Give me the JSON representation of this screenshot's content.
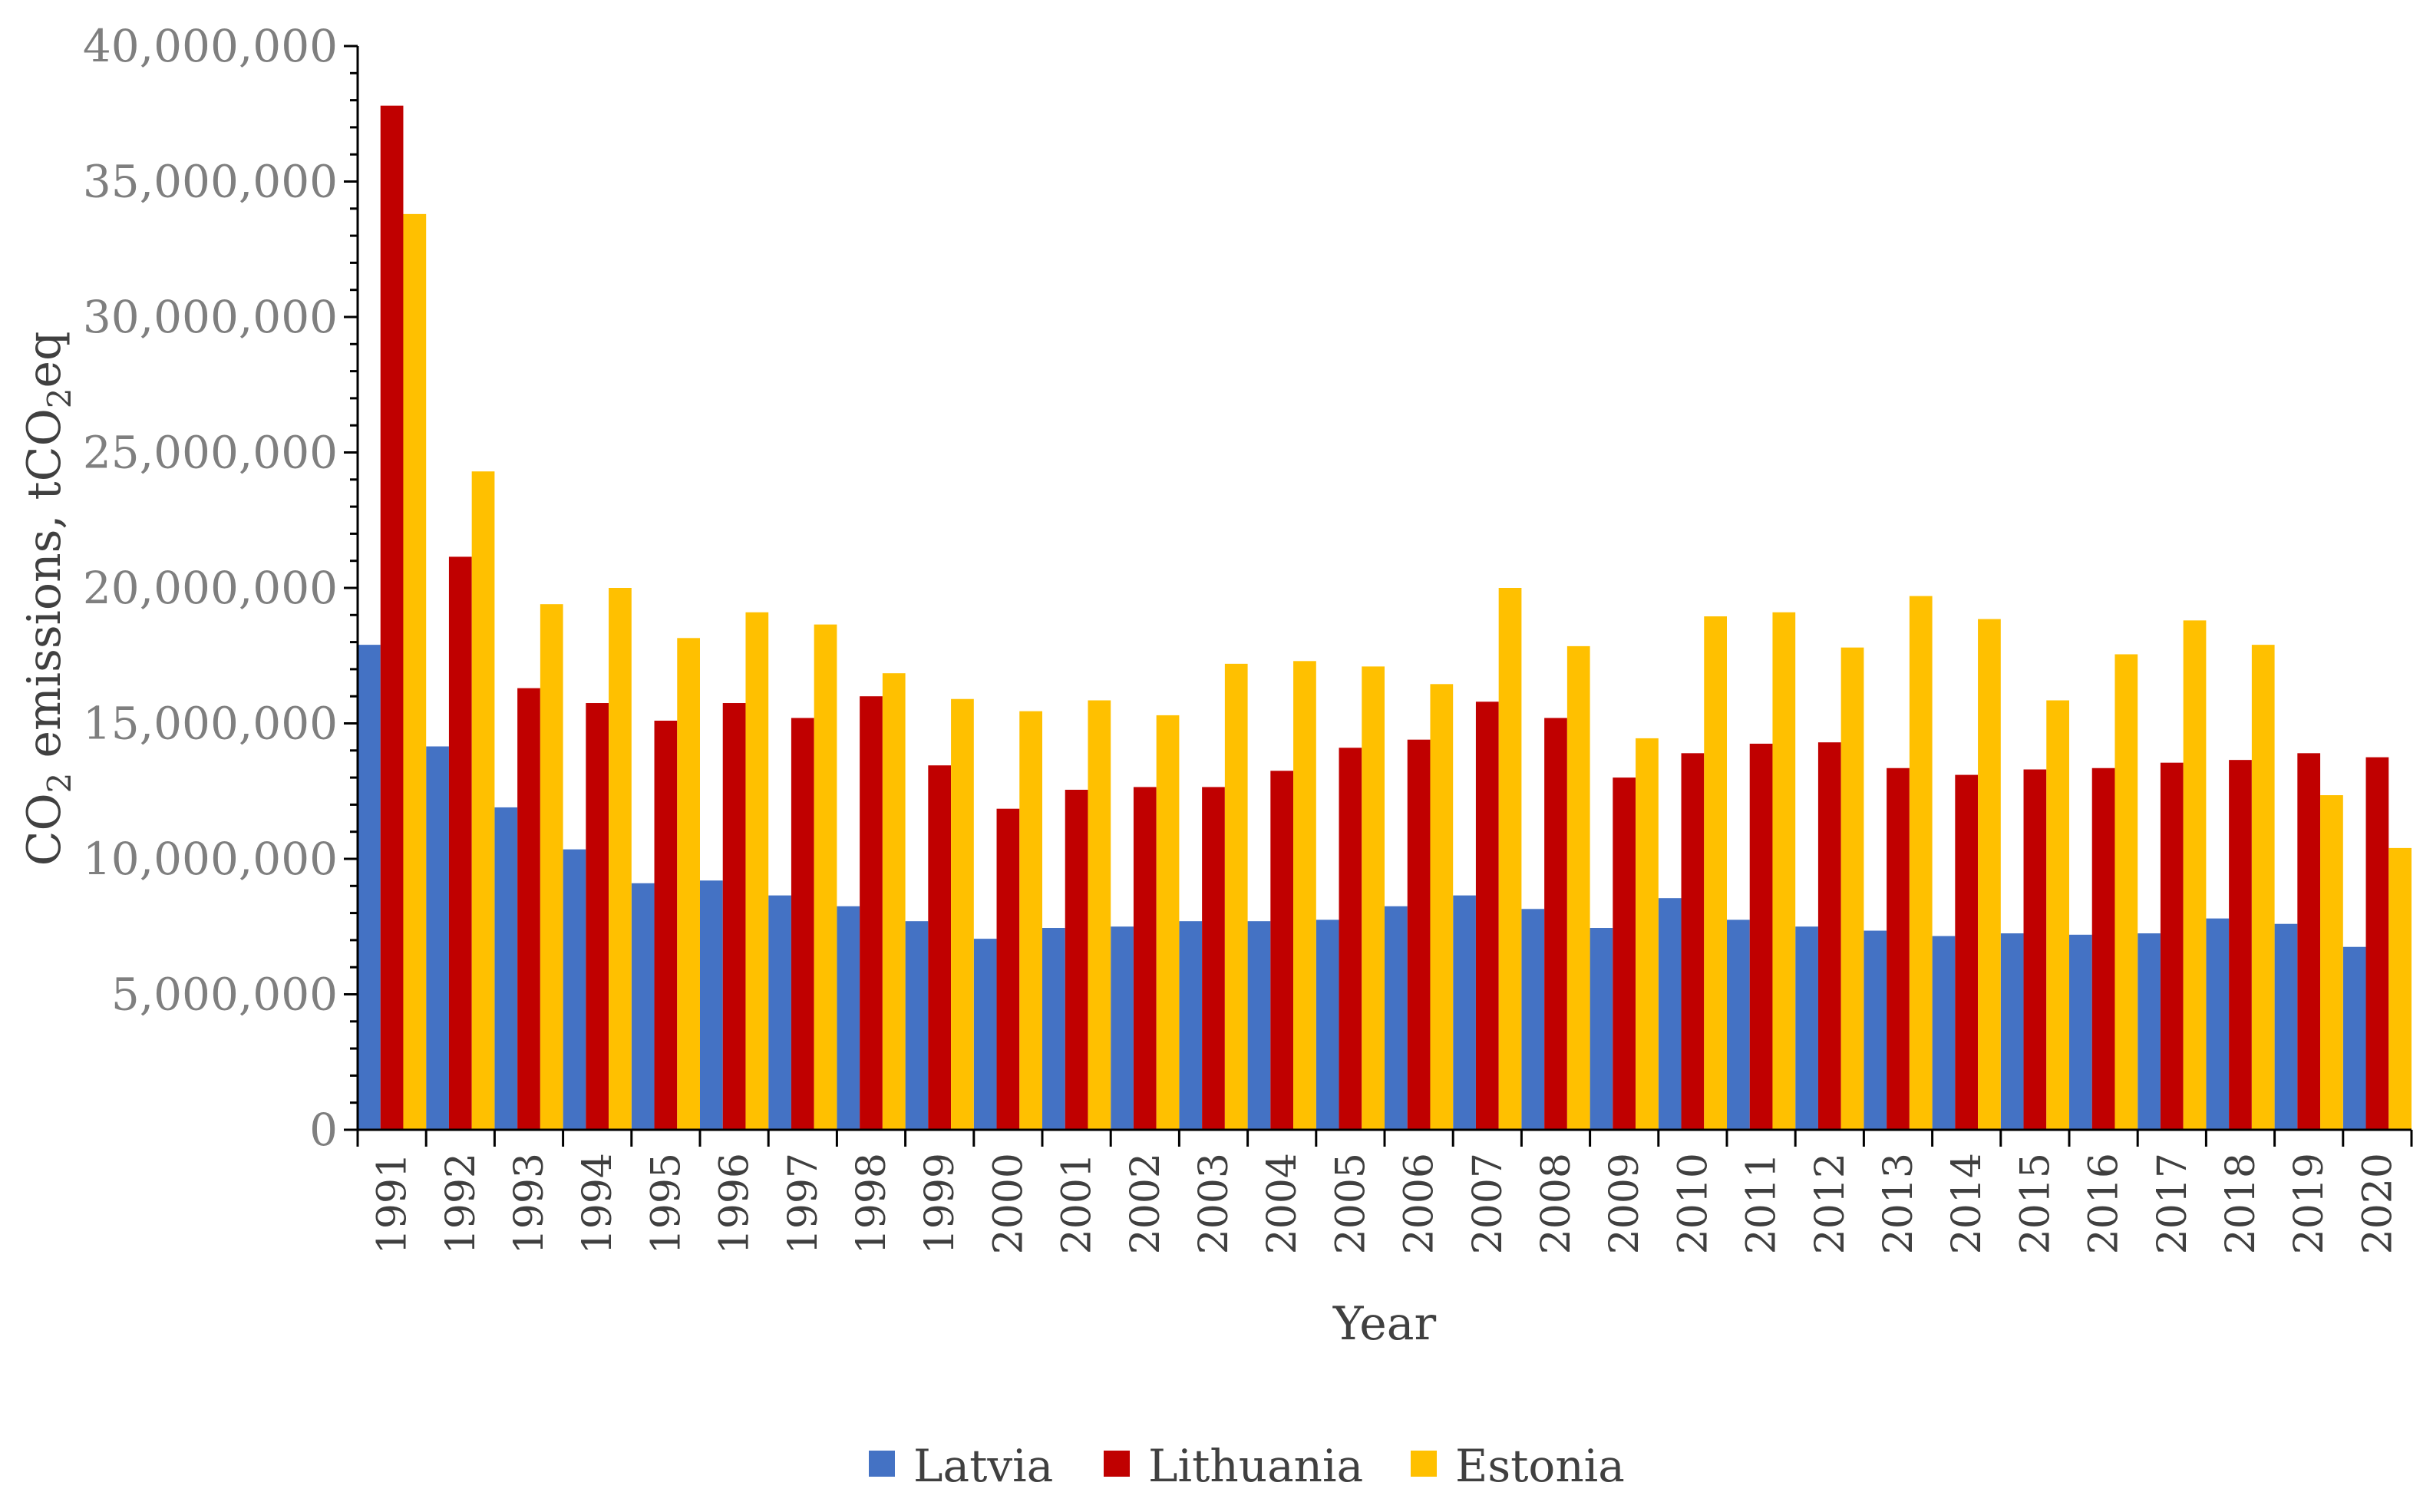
{
  "chart_data": {
    "type": "bar",
    "title": "",
    "xlabel": "Year",
    "ylabel": "CO2 emissions, tCO2eq",
    "ylabel_parts": {
      "a": "CO",
      "sub1": "2",
      "b": " emissions, tCO",
      "sub2": "2",
      "c": "eq"
    },
    "ylim": [
      0,
      40000000
    ],
    "y_ticks": [
      0,
      5000000,
      10000000,
      15000000,
      20000000,
      25000000,
      30000000,
      35000000,
      40000000
    ],
    "y_tick_labels": [
      "0",
      "5,000,000",
      "10,000,000",
      "15,000,000",
      "20,000,000",
      "25,000,000",
      "30,000,000",
      "35,000,000",
      "40,000,000"
    ],
    "categories": [
      "1991",
      "1992",
      "1993",
      "1994",
      "1995",
      "1996",
      "1997",
      "1998",
      "1999",
      "2000",
      "2001",
      "2002",
      "2003",
      "2004",
      "2005",
      "2006",
      "2007",
      "2008",
      "2009",
      "2010",
      "2011",
      "2012",
      "2013",
      "2014",
      "2015",
      "2016",
      "2017",
      "2018",
      "2019",
      "2020"
    ],
    "legend_position": "bottom",
    "series": [
      {
        "name": "Latvia",
        "color": "#4472c4",
        "values": [
          17900000,
          14150000,
          11900000,
          10350000,
          9100000,
          9200000,
          8650000,
          8250000,
          7700000,
          7050000,
          7450000,
          7500000,
          7700000,
          7700000,
          7750000,
          8250000,
          8650000,
          8150000,
          7450000,
          8550000,
          7750000,
          7500000,
          7350000,
          7150000,
          7250000,
          7200000,
          7250000,
          7800000,
          7600000,
          6750000
        ]
      },
      {
        "name": "Lithuania",
        "color": "#c00000",
        "values": [
          37800000,
          21150000,
          16300000,
          15750000,
          15100000,
          15750000,
          15200000,
          16000000,
          13450000,
          11850000,
          12550000,
          12650000,
          12650000,
          13250000,
          14100000,
          14400000,
          15800000,
          15200000,
          13000000,
          13900000,
          14250000,
          14300000,
          13350000,
          13100000,
          13300000,
          13350000,
          13550000,
          13650000,
          13900000,
          13750000
        ]
      },
      {
        "name": "Estonia",
        "color": "#ffc000",
        "values": [
          33800000,
          24300000,
          19400000,
          20000000,
          18150000,
          19100000,
          18650000,
          16850000,
          15900000,
          15450000,
          15850000,
          15300000,
          17200000,
          17300000,
          17100000,
          16450000,
          20000000,
          17850000,
          14450000,
          18950000,
          19100000,
          17800000,
          19700000,
          18850000,
          15850000,
          17550000,
          18800000,
          17900000,
          12350000,
          10400000
        ]
      }
    ]
  }
}
